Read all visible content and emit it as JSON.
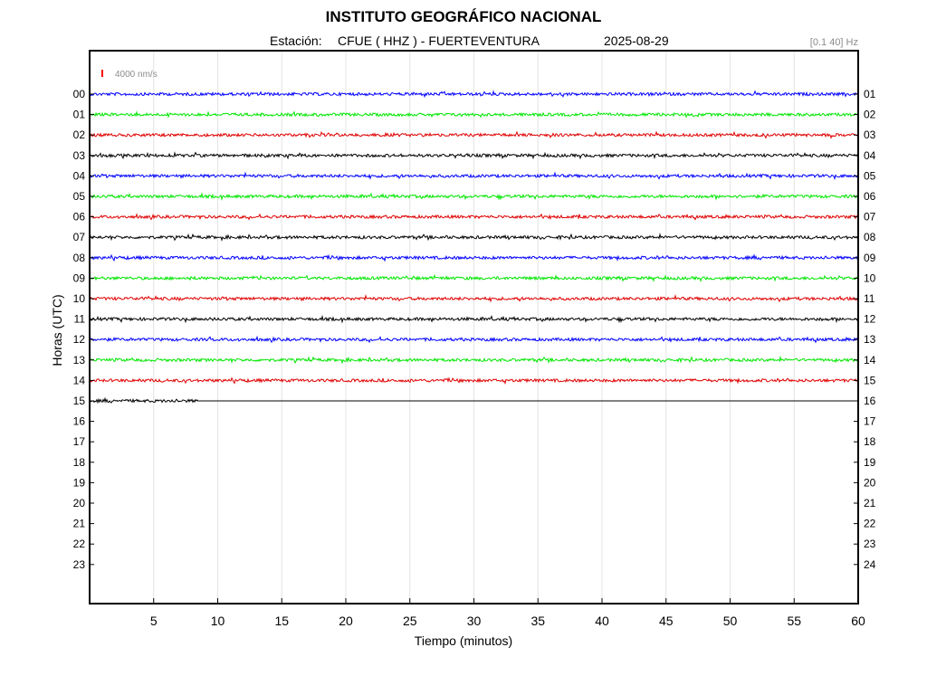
{
  "header": {
    "title": "INSTITUTO GEOGRÁFICO NACIONAL",
    "station_label": "Estación:",
    "station": "CFUE ( HHZ ) - FUERTEVENTURA",
    "date": "2025-08-29",
    "filter": "[0.1 40] Hz"
  },
  "scale": {
    "label": "4000 nm/s",
    "color": "#ff0000"
  },
  "chart_data": {
    "type": "line",
    "title": "INSTITUTO GEOGRÁFICO NACIONAL",
    "xlabel": "Tiempo (minutos)",
    "ylabel": "Horas (UTC)",
    "xlim": [
      0,
      60
    ],
    "x_ticks": [
      5,
      10,
      15,
      20,
      25,
      30,
      35,
      40,
      45,
      50,
      55,
      60
    ],
    "left_hour_labels": [
      "00",
      "01",
      "02",
      "03",
      "04",
      "05",
      "06",
      "07",
      "08",
      "09",
      "10",
      "11",
      "12",
      "13",
      "14",
      "15",
      "16",
      "17",
      "18",
      "19",
      "20",
      "21",
      "22",
      "23"
    ],
    "right_hour_labels": [
      "01",
      "02",
      "03",
      "04",
      "05",
      "06",
      "07",
      "08",
      "09",
      "10",
      "11",
      "12",
      "13",
      "14",
      "15",
      "16",
      "17",
      "18",
      "19",
      "20",
      "21",
      "22",
      "23",
      "24"
    ],
    "grid": true,
    "trace_colors": [
      "#0000ff",
      "#00e600",
      "#e00000",
      "#000000"
    ],
    "traces_recorded_until": {
      "hour": "15",
      "minute": 8.5
    }
  }
}
